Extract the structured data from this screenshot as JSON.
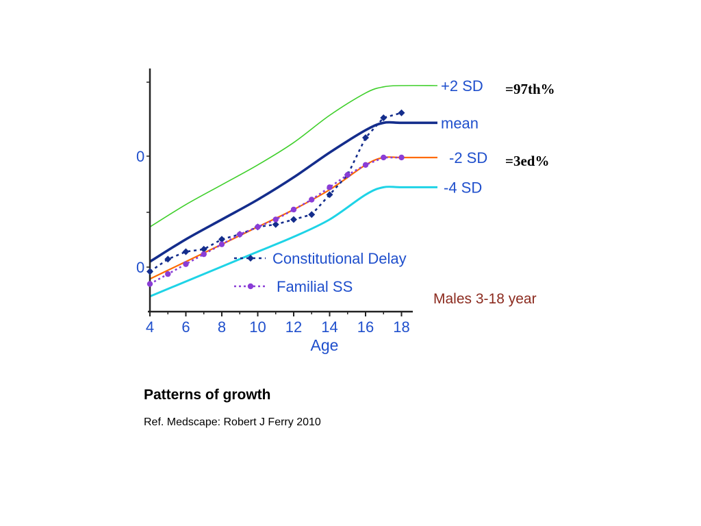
{
  "chart_data": {
    "type": "line",
    "title": "",
    "xlabel": "Age",
    "ylabel": "",
    "xlim": [
      4,
      18
    ],
    "x_ticks": [
      4,
      6,
      8,
      10,
      12,
      14,
      16,
      18
    ],
    "y_tick_fragments": [
      "0",
      "0"
    ],
    "grid": false,
    "reference_curves": [
      {
        "name": "+2 SD",
        "annotation": "=97th%",
        "color": "#3ecf2a",
        "points": [
          [
            4,
            54
          ],
          [
            6,
            63
          ],
          [
            8,
            71
          ],
          [
            10,
            79
          ],
          [
            12,
            88
          ],
          [
            14,
            99
          ],
          [
            16,
            108
          ],
          [
            17,
            110.5
          ],
          [
            18,
            111
          ],
          [
            20,
            111
          ]
        ]
      },
      {
        "name": "mean",
        "annotation": "",
        "color": "#142d8c",
        "points": [
          [
            4,
            40
          ],
          [
            6,
            49
          ],
          [
            8,
            57
          ],
          [
            10,
            65
          ],
          [
            12,
            74
          ],
          [
            14,
            84
          ],
          [
            16,
            93
          ],
          [
            17,
            96
          ],
          [
            18,
            96
          ],
          [
            20,
            96
          ]
        ]
      },
      {
        "name": "-2 SD",
        "annotation": "=3ed%",
        "color": "#ff6a00",
        "points": [
          [
            4,
            33
          ],
          [
            6,
            40
          ],
          [
            8,
            47
          ],
          [
            10,
            54
          ],
          [
            12,
            61
          ],
          [
            14,
            69
          ],
          [
            16,
            79
          ],
          [
            17,
            82
          ],
          [
            18,
            82
          ],
          [
            20,
            82
          ]
        ]
      },
      {
        "name": "-4 SD",
        "annotation": "",
        "color": "#1ed3e6",
        "points": [
          [
            4,
            26
          ],
          [
            6,
            32
          ],
          [
            8,
            38
          ],
          [
            10,
            44
          ],
          [
            12,
            50
          ],
          [
            14,
            57
          ],
          [
            16,
            67
          ],
          [
            17,
            70
          ],
          [
            18,
            70
          ],
          [
            20,
            70
          ]
        ]
      }
    ],
    "series": [
      {
        "name": "Constitutional Delay",
        "color": "#142d8c",
        "marker": "diamond",
        "points": [
          [
            4,
            36
          ],
          [
            5,
            41
          ],
          [
            6,
            44
          ],
          [
            7,
            45
          ],
          [
            8,
            49
          ],
          [
            9,
            51
          ],
          [
            10,
            54
          ],
          [
            11,
            55
          ],
          [
            12,
            57
          ],
          [
            13,
            59
          ],
          [
            14,
            67
          ],
          [
            15,
            75
          ],
          [
            16,
            90
          ],
          [
            17,
            98
          ],
          [
            18,
            100
          ]
        ]
      },
      {
        "name": "Familial SS",
        "color": "#8a3dd6",
        "marker": "circle",
        "points": [
          [
            4,
            31
          ],
          [
            5,
            35
          ],
          [
            6,
            39
          ],
          [
            7,
            43
          ],
          [
            8,
            47
          ],
          [
            9,
            51
          ],
          [
            10,
            54
          ],
          [
            11,
            57
          ],
          [
            12,
            61
          ],
          [
            13,
            65
          ],
          [
            14,
            70
          ],
          [
            15,
            75
          ],
          [
            16,
            79
          ],
          [
            17,
            82
          ],
          [
            18,
            82
          ]
        ]
      }
    ],
    "annotation": "Males 3-18 year",
    "legend_position": "bottom-center"
  },
  "caption": {
    "title": "Patterns of growth",
    "ref": "Ref. Medscape: Robert J Ferry 2010"
  }
}
